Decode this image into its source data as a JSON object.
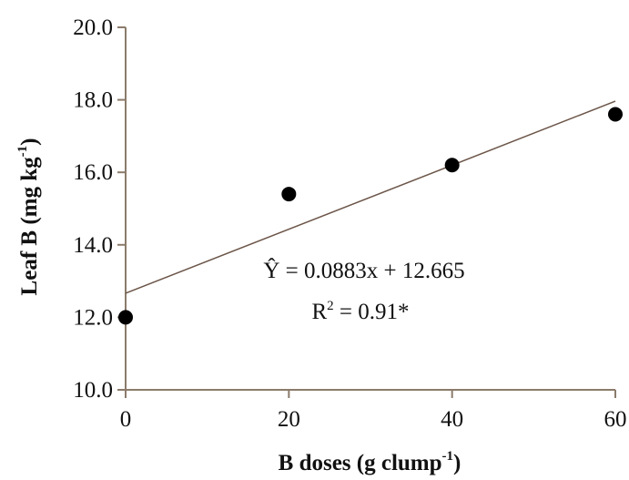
{
  "chart_data": {
    "type": "scatter",
    "xlabel": "B doses (g clump",
    "xlabel_sup": "-1",
    "xlabel_end": ")",
    "ylabel": "Leaf B (mg kg",
    "ylabel_sup": "-1",
    "ylabel_end": ")",
    "xlim": [
      0,
      60
    ],
    "ylim": [
      10.0,
      20.0
    ],
    "x_ticks": [
      "0",
      "20",
      "40",
      "60"
    ],
    "y_ticks": [
      "10.0",
      "12.0",
      "14.0",
      "16.0",
      "18.0",
      "20.0"
    ],
    "grid": false,
    "colors": {
      "axis": "#8b7b6b",
      "point": "#000000",
      "trend": "#6b5548"
    },
    "series": [
      {
        "x": [
          0,
          20,
          40,
          60
        ],
        "y": [
          12.0,
          15.4,
          16.2,
          17.6
        ]
      }
    ],
    "trendline": {
      "slope": 0.0883,
      "intercept": 12.665
    },
    "annotations": {
      "equation": "Ŷ = 0.0883x + 12.665",
      "r2_prefix": "R",
      "r2_sup": "2",
      "r2_suffix": " = 0.91*"
    }
  }
}
